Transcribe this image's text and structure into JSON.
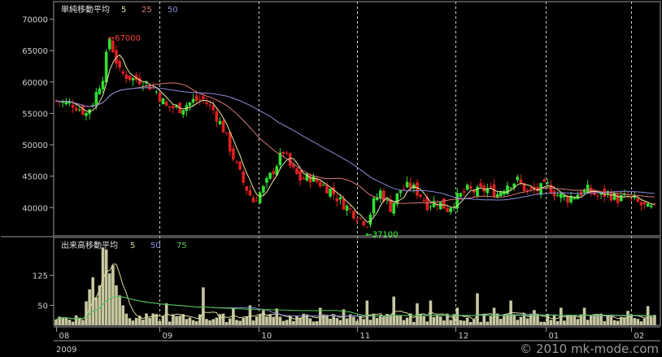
{
  "chart_data": [
    {
      "type": "candlestick",
      "legend": {
        "title": "単純移動平均",
        "items": [
          {
            "label": "5",
            "color": "#e8e8a0"
          },
          {
            "label": "25",
            "color": "#d87878"
          },
          {
            "label": "50",
            "color": "#8a8ad8"
          }
        ]
      },
      "yticks": [
        "70000",
        "65000",
        "60000",
        "55000",
        "50000",
        "45000",
        "40000"
      ],
      "ylim": [
        35500,
        72800
      ],
      "annotations": [
        {
          "text": "←67000",
          "value": 67000,
          "color": "#ff4040"
        },
        {
          "text": "←37100",
          "value": 37100,
          "color": "#40ff40"
        }
      ],
      "up_color": "#30e030",
      "down_color": "#e02020",
      "anchors": [
        [
          0,
          57000
        ],
        [
          5,
          56500
        ],
        [
          9,
          55000
        ],
        [
          11,
          56800
        ],
        [
          14,
          61000
        ],
        [
          16,
          67000
        ],
        [
          19,
          61500
        ],
        [
          23,
          60500
        ],
        [
          26,
          60200
        ],
        [
          30,
          58500
        ],
        [
          33,
          56000
        ],
        [
          37,
          55800
        ],
        [
          41,
          57000
        ],
        [
          44,
          57200
        ],
        [
          47,
          55500
        ],
        [
          50,
          52500
        ],
        [
          53,
          48000
        ],
        [
          56,
          44000
        ],
        [
          59,
          41000
        ],
        [
          62,
          43000
        ],
        [
          65,
          46000
        ],
        [
          68,
          49000
        ],
        [
          70,
          46500
        ],
        [
          73,
          44500
        ],
        [
          76,
          44800
        ],
        [
          79,
          43800
        ],
        [
          82,
          42800
        ],
        [
          85,
          41000
        ],
        [
          88,
          39600
        ],
        [
          91,
          38200
        ],
        [
          93,
          37600
        ],
        [
          95,
          40800
        ],
        [
          97,
          42500
        ],
        [
          100,
          40000
        ],
        [
          103,
          42800
        ],
        [
          106,
          43500
        ],
        [
          109,
          42000
        ],
        [
          111,
          40500
        ],
        [
          114,
          41000
        ],
        [
          117,
          39800
        ],
        [
          120,
          41500
        ],
        [
          123,
          42800
        ],
        [
          126,
          42500
        ],
        [
          129,
          43000
        ],
        [
          132,
          42200
        ],
        [
          135,
          43800
        ],
        [
          138,
          44300
        ],
        [
          141,
          42500
        ],
        [
          144,
          42800
        ],
        [
          147,
          43500
        ],
        [
          150,
          42000
        ],
        [
          153,
          41500
        ],
        [
          156,
          42200
        ],
        [
          159,
          42800
        ],
        [
          162,
          41800
        ],
        [
          165,
          42300
        ],
        [
          168,
          41400
        ],
        [
          171,
          41600
        ],
        [
          174,
          40700
        ],
        [
          177,
          39800
        ]
      ]
    },
    {
      "type": "bar",
      "legend": {
        "title": "出来高移動平均",
        "items": [
          {
            "label": "5",
            "color": "#d8d8a0"
          },
          {
            "label": "50",
            "color": "#8a8ad8"
          },
          {
            "label": "75",
            "color": "#50c850"
          }
        ]
      },
      "yticks": [
        "125",
        "50"
      ],
      "ylim": [
        0,
        220
      ],
      "bar_color": "#c8c8a0",
      "spikes": {
        "9": 60,
        "10": 90,
        "11": 120,
        "12": 70,
        "13": 100,
        "14": 195,
        "15": 190,
        "16": 130,
        "17": 150,
        "18": 100,
        "19": 75,
        "20": 50,
        "33": 55,
        "44": 95,
        "53": 42,
        "58": 50,
        "62": 38,
        "66": 42,
        "79": 44,
        "86": 40,
        "93": 62,
        "101": 72,
        "108": 55,
        "112": 62,
        "120": 44,
        "126": 80,
        "131": 44,
        "136": 62,
        "143": 38,
        "151": 44,
        "158": 44,
        "171": 36,
        "177": 48
      }
    }
  ],
  "x_axis": {
    "months": [
      {
        "label": "08",
        "index": 0
      },
      {
        "label": "09",
        "index": 23
      },
      {
        "label": "10",
        "index": 45
      },
      {
        "label": "11",
        "index": 67
      },
      {
        "label": "12",
        "index": 89
      },
      {
        "label": "01",
        "index": 109
      },
      {
        "label": "02",
        "index": 128
      }
    ],
    "year": "2009"
  },
  "watermark": "© 2010 mk-mode.com"
}
